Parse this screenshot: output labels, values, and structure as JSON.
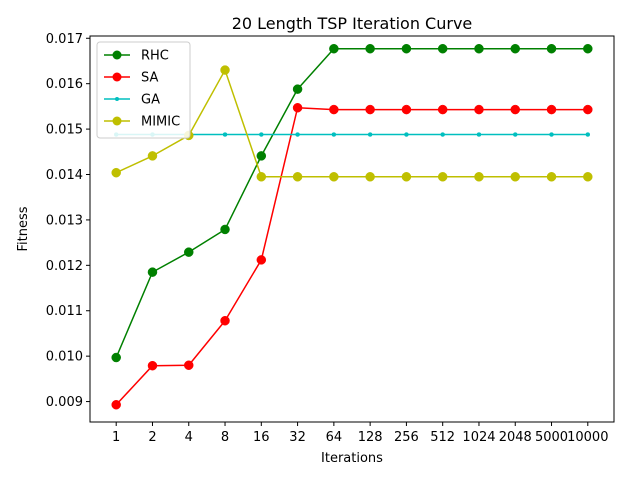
{
  "chart_data": {
    "type": "line",
    "title": "20 Length TSP Iteration Curve",
    "xlabel": "Iterations",
    "ylabel": "Fitness",
    "categories": [
      "1",
      "2",
      "4",
      "8",
      "16",
      "32",
      "64",
      "128",
      "256",
      "512",
      "1024",
      "2048",
      "5000",
      "10000"
    ],
    "ylim": [
      0.00855,
      0.01705
    ],
    "yticks": [
      "0.009",
      "0.010",
      "0.011",
      "0.012",
      "0.013",
      "0.014",
      "0.015",
      "0.016",
      "0.017"
    ],
    "grid": false,
    "legend_position": "top-left",
    "series": [
      {
        "name": "RHC",
        "color": "#008000",
        "marker": "large-circle",
        "values": [
          0.00997,
          0.01185,
          0.01229,
          0.01279,
          0.01441,
          0.01588,
          0.01677,
          0.01677,
          0.01677,
          0.01677,
          0.01677,
          0.01677,
          0.01677,
          0.01677
        ]
      },
      {
        "name": "SA",
        "color": "#ff0000",
        "marker": "large-circle",
        "values": [
          0.00893,
          0.00979,
          0.0098,
          0.01078,
          0.01212,
          0.01547,
          0.01543,
          0.01543,
          0.01543,
          0.01543,
          0.01543,
          0.01543,
          0.01543,
          0.01543
        ]
      },
      {
        "name": "GA",
        "color": "#00bfbf",
        "marker": "small-dot",
        "values": [
          0.01488,
          0.01488,
          0.01488,
          0.01488,
          0.01488,
          0.01488,
          0.01488,
          0.01488,
          0.01488,
          0.01488,
          0.01488,
          0.01488,
          0.01488,
          0.01488
        ]
      },
      {
        "name": "MIMIC",
        "color": "#bfbf00",
        "marker": "large-circle",
        "values": [
          0.01404,
          0.01441,
          0.01486,
          0.0163,
          0.01395,
          0.01395,
          0.01395,
          0.01395,
          0.01395,
          0.01395,
          0.01395,
          0.01395,
          0.01395,
          0.01395
        ]
      }
    ]
  }
}
